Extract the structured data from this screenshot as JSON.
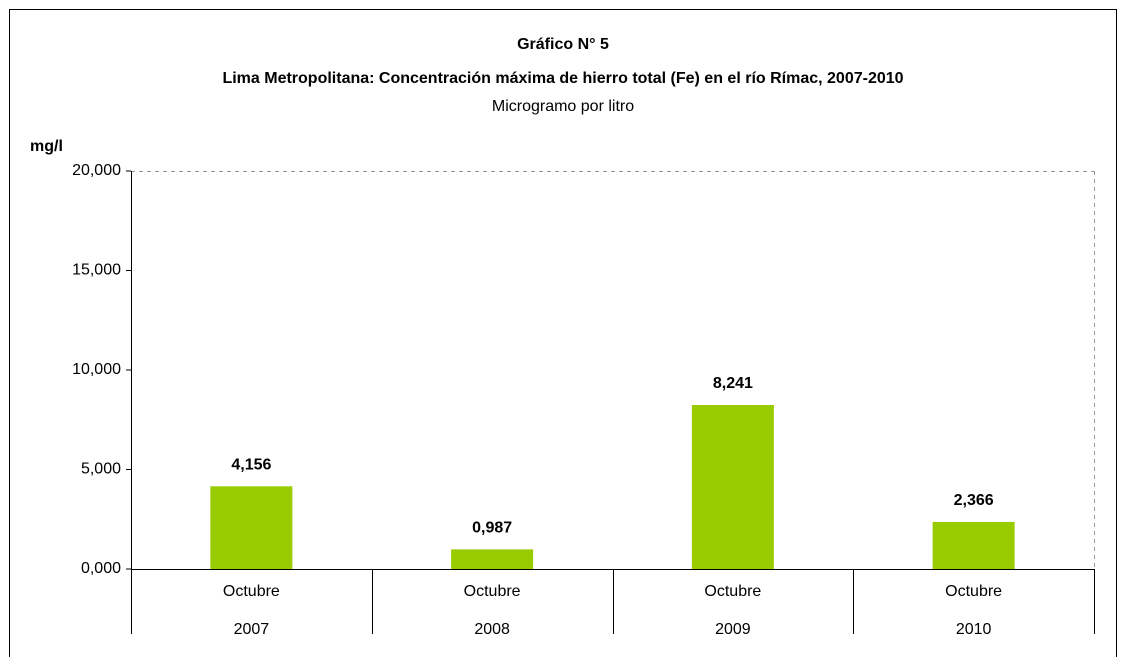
{
  "chart_data": {
    "type": "bar",
    "title": "Gráfico N° 5",
    "subtitle": "Lima Metropolitana: Concentración máxima de hierro total (Fe) en el río Rímac, 2007-2010",
    "unit_note": "Microgramo por litro",
    "y_label": "mg/l",
    "categories": [
      "Octubre",
      "Octubre",
      "Octubre",
      "Octubre"
    ],
    "years": [
      "2007",
      "2008",
      "2009",
      "2010"
    ],
    "values": [
      4.156,
      0.987,
      8.241,
      2.366
    ],
    "value_labels": [
      "4,156",
      "0,987",
      "8,241",
      "2,366"
    ],
    "color": "#99cc00",
    "ylim": [
      0,
      20
    ],
    "yticks": [
      {
        "value": 0,
        "label": "0,000"
      },
      {
        "value": 5,
        "label": "5,000"
      },
      {
        "value": 10,
        "label": "10,000"
      },
      {
        "value": 15,
        "label": "15,000"
      },
      {
        "value": 20,
        "label": "20,000"
      }
    ],
    "grid": false
  }
}
